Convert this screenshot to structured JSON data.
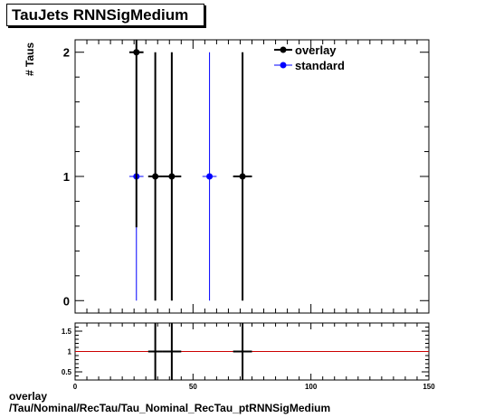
{
  "title": "TauJets RNNSigMedium",
  "footer": {
    "line1": "overlay",
    "line2": "/Tau/Nominal/RecTau/Tau_Nominal_RecTau_ptRNNSigMedium"
  },
  "colors": {
    "overlay": "#000000",
    "standard": "#0000ff",
    "ratio_line": "#cc0000"
  },
  "chart_data": [
    {
      "type": "scatter",
      "panel": "main",
      "title": "TauJets RNNSigMedium",
      "xlabel": "",
      "ylabel": "# Taus",
      "xlim": [
        0,
        150
      ],
      "ylim": [
        -0.1,
        2.1
      ],
      "yticks": [
        0,
        1,
        2
      ],
      "grid": false,
      "legend_position": "top-right",
      "series": [
        {
          "name": "overlay",
          "points": [
            {
              "x": 26,
              "y": 2,
              "xerr": 3,
              "ylo": 0.59,
              "yhi": 2.1
            },
            {
              "x": 34,
              "y": 1,
              "xerr": 3,
              "ylo": 0,
              "yhi": 2
            },
            {
              "x": 41,
              "y": 1,
              "xerr": 4,
              "ylo": 0,
              "yhi": 2
            },
            {
              "x": 71,
              "y": 1,
              "xerr": 4,
              "ylo": 0,
              "yhi": 2
            }
          ]
        },
        {
          "name": "standard",
          "points": [
            {
              "x": 26,
              "y": 1,
              "xerr": 3,
              "ylo": 0,
              "yhi": 2
            },
            {
              "x": 57,
              "y": 1,
              "xerr": 3,
              "ylo": 0,
              "yhi": 2
            }
          ]
        }
      ]
    },
    {
      "type": "scatter",
      "panel": "ratio",
      "xlabel": "",
      "ylabel": "",
      "xlim": [
        0,
        150
      ],
      "ylim": [
        0.3,
        1.7
      ],
      "yticks": [
        0.5,
        1,
        1.5
      ],
      "xticks": [
        0,
        50,
        100,
        150
      ],
      "reference_line": 1,
      "points": [
        {
          "x": 34,
          "y": 1,
          "xerr": 3,
          "ylo": 0.3,
          "yhi": 1.7
        },
        {
          "x": 41,
          "y": 1,
          "xerr": 4,
          "ylo": 0.3,
          "yhi": 1.7
        },
        {
          "x": 71,
          "y": 1,
          "xerr": 4,
          "ylo": 0.3,
          "yhi": 1.7
        }
      ]
    }
  ]
}
